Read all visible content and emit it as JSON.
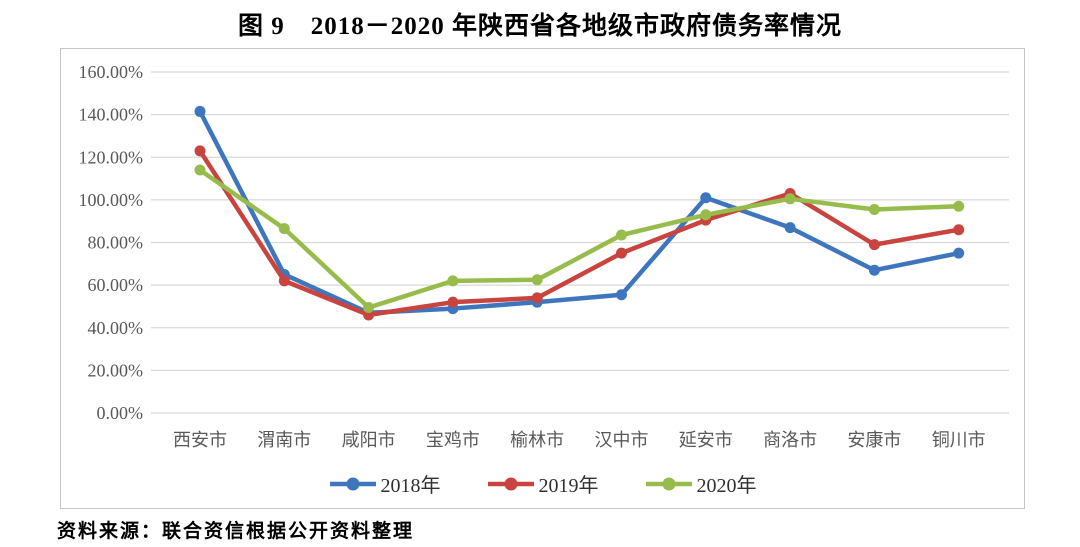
{
  "title": "图 9　2018－2020 年陕西省各地级市政府债务率情况",
  "source_note": "资料来源：联合资信根据公开资料整理",
  "chart_data": {
    "type": "line",
    "title": "图 9　2018－2020 年陕西省各地级市政府债务率情况",
    "categories": [
      "西安市",
      "渭南市",
      "咸阳市",
      "宝鸡市",
      "榆林市",
      "汉中市",
      "延安市",
      "商洛市",
      "安康市",
      "铜川市"
    ],
    "series": [
      {
        "name": "2018年",
        "color": "#3e76bd",
        "values": [
          141.5,
          65,
          47,
          49,
          52,
          55.5,
          101,
          87,
          67,
          75
        ]
      },
      {
        "name": "2019年",
        "color": "#c9443f",
        "values": [
          123,
          62,
          46,
          52,
          54,
          75,
          90.5,
          103,
          79,
          86
        ]
      },
      {
        "name": "2020年",
        "color": "#97bc4c",
        "values": [
          114,
          86.5,
          49.5,
          62,
          62.5,
          83.5,
          93,
          100.5,
          95.5,
          97
        ]
      }
    ],
    "y_axis": {
      "min": 0,
      "max": 160,
      "step": 20,
      "tick_labels": [
        "0.00%",
        "20.00%",
        "40.00%",
        "60.00%",
        "80.00%",
        "100.00%",
        "120.00%",
        "140.00%",
        "160.00%"
      ]
    },
    "xlabel": "",
    "ylabel": "",
    "grid": true,
    "legend_position": "bottom",
    "colors": {
      "gridline": "#d9d9d9",
      "axis_text": "#595959",
      "legend_text": "#303030",
      "plot_border": "#c6c6c6"
    }
  }
}
